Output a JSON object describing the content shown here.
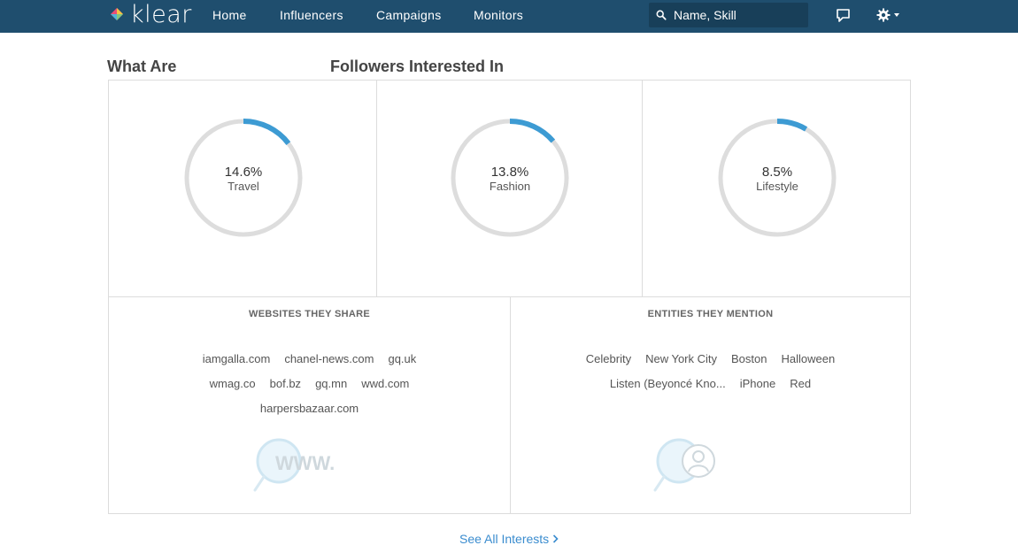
{
  "nav": {
    "logo": "klear",
    "links": [
      "Home",
      "Influencers",
      "Campaigns",
      "Monitors"
    ],
    "search_placeholder": "Name, Skill"
  },
  "headings": {
    "left": "What Are",
    "right": "Followers Interested In"
  },
  "interests": [
    {
      "percent": "14.6%",
      "value": 0.146,
      "label": "Travel"
    },
    {
      "percent": "13.8%",
      "value": 0.138,
      "label": "Fashion"
    },
    {
      "percent": "8.5%",
      "value": 0.085,
      "label": "Lifestyle"
    }
  ],
  "websites": {
    "title": "WEBSITES THEY SHARE",
    "rows": [
      [
        "iamgalla.com",
        "chanel-news.com",
        "gq.uk"
      ],
      [
        "wmag.co",
        "bof.bz",
        "gq.mn",
        "wwd.com"
      ],
      [
        "harpersbazaar.com"
      ]
    ],
    "watermark": "WWW."
  },
  "entities": {
    "title": "ENTITIES THEY MENTION",
    "rows": [
      [
        "Celebrity",
        "New York City",
        "Boston",
        "Halloween"
      ],
      [
        "Listen (Beyoncé Kno...",
        "iPhone",
        "Red"
      ]
    ]
  },
  "footer": {
    "see_all": "See All Interests"
  },
  "colors": {
    "nav_bg": "#1f4e6e",
    "accent": "#3d9bd3",
    "ring_bg": "#dddddd",
    "link": "#3a8ccf"
  },
  "icons": {
    "logo": "klear-diamond-logo-icon",
    "search": "search-icon",
    "chat": "chat-bubble-icon",
    "settings": "gear-icon",
    "dropdown": "caret-down-icon",
    "websites_watermark": "magnifier-www-icon",
    "entities_watermark": "magnifier-person-icon",
    "see_all": "chevron-right-icon"
  }
}
